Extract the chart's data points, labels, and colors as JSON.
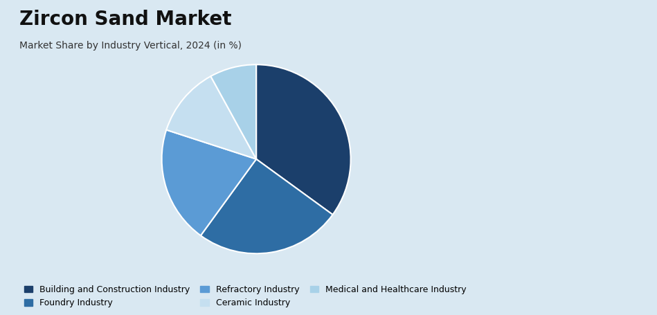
{
  "title": "Zircon Sand Market",
  "subtitle": "Market Share by Industry Vertical, 2024 (in %)",
  "labels": [
    "Building and Construction Industry",
    "Foundry Industry",
    "Refractory Industry",
    "Ceramic Industry",
    "Medical and Healthcare Industry"
  ],
  "values": [
    35,
    25,
    20,
    12,
    8
  ],
  "colors": [
    "#1b3f6b",
    "#2e6da4",
    "#5b9bd5",
    "#c5dff0",
    "#a8d1e8"
  ],
  "background_color": "#d9e8f2",
  "right_panel_color": "#ffffff",
  "title_fontsize": 20,
  "subtitle_fontsize": 10,
  "legend_fontsize": 9,
  "startangle": 90
}
